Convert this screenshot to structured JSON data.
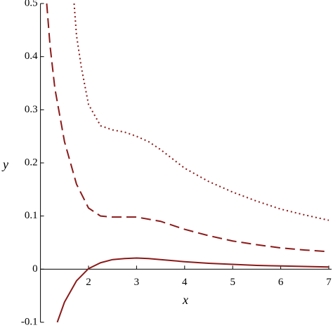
{
  "chart_data": {
    "type": "line",
    "xlabel": "x",
    "ylabel": "y",
    "xlim": [
      1,
      7
    ],
    "ylim": [
      -0.1,
      0.5
    ],
    "xticks": [
      2,
      3,
      4,
      5,
      6,
      7
    ],
    "yticks": [
      -0.1,
      0,
      0.1,
      0.2,
      0.3,
      0.4,
      0.5
    ],
    "series": [
      {
        "color": "#8b1a1a",
        "style": "solid",
        "x": [
          1.35,
          1.5,
          1.75,
          2,
          2.25,
          2.5,
          2.75,
          3,
          3.25,
          3.5,
          4,
          4.5,
          5,
          5.5,
          6,
          6.5,
          7
        ],
        "values": [
          -0.1,
          -0.062,
          -0.022,
          0.001,
          0.012,
          0.018,
          0.02,
          0.021,
          0.02,
          0.018,
          0.014,
          0.011,
          0.009,
          0.007,
          0.006,
          0.005,
          0.004
        ]
      },
      {
        "color": "#8b1a1a",
        "style": "dashed",
        "x": [
          1.13,
          1.2,
          1.3,
          1.5,
          1.75,
          2,
          2.25,
          2.5,
          3,
          3.5,
          4,
          4.5,
          5,
          5.5,
          6,
          6.5,
          7
        ],
        "values": [
          0.5,
          0.42,
          0.34,
          0.24,
          0.16,
          0.115,
          0.1,
          0.098,
          0.098,
          0.09,
          0.075,
          0.063,
          0.053,
          0.046,
          0.04,
          0.036,
          0.033
        ]
      },
      {
        "color": "#8b1a1a",
        "style": "dotted",
        "x": [
          1.7,
          1.75,
          1.85,
          2,
          2.25,
          2.5,
          2.75,
          3,
          3.25,
          3.5,
          4,
          4.5,
          5,
          5.5,
          6,
          6.5,
          7
        ],
        "values": [
          0.5,
          0.44,
          0.38,
          0.31,
          0.27,
          0.262,
          0.258,
          0.25,
          0.24,
          0.225,
          0.19,
          0.165,
          0.145,
          0.128,
          0.113,
          0.102,
          0.092
        ]
      }
    ]
  }
}
